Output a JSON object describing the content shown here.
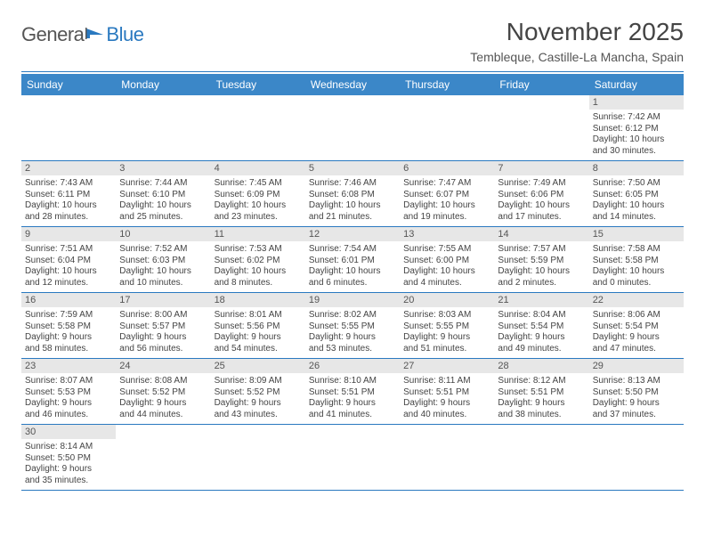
{
  "logo": {
    "part1": "Genera",
    "part2": "Blue"
  },
  "title": "November 2025",
  "subtitle": "Tembleque, Castille-La Mancha, Spain",
  "colors": {
    "header_bg": "#3b87c8",
    "header_text": "#ffffff",
    "divider": "#2a79c0",
    "daynum_bg": "#e7e7e7",
    "text": "#444444",
    "logo_gray": "#555555",
    "logo_blue": "#2a79c0",
    "background": "#ffffff"
  },
  "dayHeaders": [
    "Sunday",
    "Monday",
    "Tuesday",
    "Wednesday",
    "Thursday",
    "Friday",
    "Saturday"
  ],
  "weeks": [
    [
      null,
      null,
      null,
      null,
      null,
      null,
      {
        "n": "1",
        "sr": "7:42 AM",
        "ss": "6:12 PM",
        "dl": "10 hours and 30 minutes."
      }
    ],
    [
      {
        "n": "2",
        "sr": "7:43 AM",
        "ss": "6:11 PM",
        "dl": "10 hours and 28 minutes."
      },
      {
        "n": "3",
        "sr": "7:44 AM",
        "ss": "6:10 PM",
        "dl": "10 hours and 25 minutes."
      },
      {
        "n": "4",
        "sr": "7:45 AM",
        "ss": "6:09 PM",
        "dl": "10 hours and 23 minutes."
      },
      {
        "n": "5",
        "sr": "7:46 AM",
        "ss": "6:08 PM",
        "dl": "10 hours and 21 minutes."
      },
      {
        "n": "6",
        "sr": "7:47 AM",
        "ss": "6:07 PM",
        "dl": "10 hours and 19 minutes."
      },
      {
        "n": "7",
        "sr": "7:49 AM",
        "ss": "6:06 PM",
        "dl": "10 hours and 17 minutes."
      },
      {
        "n": "8",
        "sr": "7:50 AM",
        "ss": "6:05 PM",
        "dl": "10 hours and 14 minutes."
      }
    ],
    [
      {
        "n": "9",
        "sr": "7:51 AM",
        "ss": "6:04 PM",
        "dl": "10 hours and 12 minutes."
      },
      {
        "n": "10",
        "sr": "7:52 AM",
        "ss": "6:03 PM",
        "dl": "10 hours and 10 minutes."
      },
      {
        "n": "11",
        "sr": "7:53 AM",
        "ss": "6:02 PM",
        "dl": "10 hours and 8 minutes."
      },
      {
        "n": "12",
        "sr": "7:54 AM",
        "ss": "6:01 PM",
        "dl": "10 hours and 6 minutes."
      },
      {
        "n": "13",
        "sr": "7:55 AM",
        "ss": "6:00 PM",
        "dl": "10 hours and 4 minutes."
      },
      {
        "n": "14",
        "sr": "7:57 AM",
        "ss": "5:59 PM",
        "dl": "10 hours and 2 minutes."
      },
      {
        "n": "15",
        "sr": "7:58 AM",
        "ss": "5:58 PM",
        "dl": "10 hours and 0 minutes."
      }
    ],
    [
      {
        "n": "16",
        "sr": "7:59 AM",
        "ss": "5:58 PM",
        "dl": "9 hours and 58 minutes."
      },
      {
        "n": "17",
        "sr": "8:00 AM",
        "ss": "5:57 PM",
        "dl": "9 hours and 56 minutes."
      },
      {
        "n": "18",
        "sr": "8:01 AM",
        "ss": "5:56 PM",
        "dl": "9 hours and 54 minutes."
      },
      {
        "n": "19",
        "sr": "8:02 AM",
        "ss": "5:55 PM",
        "dl": "9 hours and 53 minutes."
      },
      {
        "n": "20",
        "sr": "8:03 AM",
        "ss": "5:55 PM",
        "dl": "9 hours and 51 minutes."
      },
      {
        "n": "21",
        "sr": "8:04 AM",
        "ss": "5:54 PM",
        "dl": "9 hours and 49 minutes."
      },
      {
        "n": "22",
        "sr": "8:06 AM",
        "ss": "5:54 PM",
        "dl": "9 hours and 47 minutes."
      }
    ],
    [
      {
        "n": "23",
        "sr": "8:07 AM",
        "ss": "5:53 PM",
        "dl": "9 hours and 46 minutes."
      },
      {
        "n": "24",
        "sr": "8:08 AM",
        "ss": "5:52 PM",
        "dl": "9 hours and 44 minutes."
      },
      {
        "n": "25",
        "sr": "8:09 AM",
        "ss": "5:52 PM",
        "dl": "9 hours and 43 minutes."
      },
      {
        "n": "26",
        "sr": "8:10 AM",
        "ss": "5:51 PM",
        "dl": "9 hours and 41 minutes."
      },
      {
        "n": "27",
        "sr": "8:11 AM",
        "ss": "5:51 PM",
        "dl": "9 hours and 40 minutes."
      },
      {
        "n": "28",
        "sr": "8:12 AM",
        "ss": "5:51 PM",
        "dl": "9 hours and 38 minutes."
      },
      {
        "n": "29",
        "sr": "8:13 AM",
        "ss": "5:50 PM",
        "dl": "9 hours and 37 minutes."
      }
    ],
    [
      {
        "n": "30",
        "sr": "8:14 AM",
        "ss": "5:50 PM",
        "dl": "9 hours and 35 minutes."
      },
      null,
      null,
      null,
      null,
      null,
      null
    ]
  ],
  "labels": {
    "sunrise": "Sunrise:",
    "sunset": "Sunset:",
    "daylight": "Daylight:"
  }
}
